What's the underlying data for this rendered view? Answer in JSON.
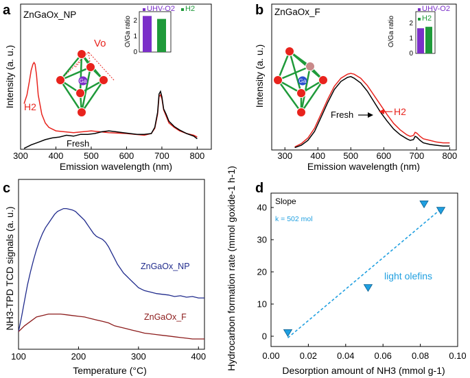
{
  "colors": {
    "black": "#000000",
    "red": "#e8231d",
    "green": "#1f9a3a",
    "purple": "#7b2fc9",
    "navy": "#1f2a8c",
    "maroon": "#8b1a1a",
    "cyan": "#1f9fe0",
    "atom_red": "#e8231d",
    "ga_blue": "#2a4fd0",
    "dark_green": "#0b6b2a",
    "dark_purple": "#4a1d8a"
  },
  "chart_data": [
    {
      "panel": "a",
      "type": "line",
      "sample_label": "ZnGaOx_NP",
      "xlabel": "Emission wavelength (nm)",
      "ylabel": "Intensity (a. u.)",
      "xlim": [
        300,
        840
      ],
      "xticks": [
        300,
        400,
        500,
        600,
        700,
        800
      ],
      "ylim": [
        0,
        100
      ],
      "series": [
        {
          "name": "H2",
          "color": "#e8231d",
          "x": [
            310,
            318,
            325,
            330,
            335,
            338,
            341,
            345,
            350,
            360,
            370,
            380,
            400,
            450,
            500,
            550,
            600,
            650,
            670,
            680,
            688,
            692,
            696,
            700,
            705,
            712,
            720,
            735,
            750,
            770,
            790,
            800
          ],
          "y": [
            52,
            62,
            78,
            90,
            97,
            99,
            97,
            85,
            62,
            40,
            30,
            25,
            21,
            19,
            21,
            19,
            18,
            16,
            18,
            24,
            40,
            60,
            62,
            58,
            45,
            38,
            30,
            25,
            21,
            18,
            16,
            14
          ]
        },
        {
          "name": "Fresh",
          "color": "#000000",
          "x": [
            310,
            330,
            350,
            370,
            390,
            410,
            430,
            450,
            470,
            490,
            510,
            530,
            550,
            570,
            590,
            610,
            630,
            650,
            670,
            680,
            688,
            692,
            696,
            700,
            705,
            712,
            720,
            735,
            750,
            770,
            790,
            800
          ],
          "y": [
            1,
            5,
            8,
            11,
            13,
            14,
            16,
            15,
            17,
            17,
            18,
            20,
            21,
            20,
            19,
            18,
            17,
            17,
            18,
            25,
            42,
            63,
            66,
            60,
            46,
            40,
            32,
            26,
            22,
            18,
            15,
            12
          ]
        }
      ],
      "labels": {
        "h2": "H2",
        "fresh": "Fresh",
        "vo": "Vo",
        "ga": "Ga"
      },
      "inset": {
        "ylabel": "O/Ga ratio",
        "yticks": [
          0,
          1,
          2
        ],
        "legend": [
          "UHV-O2",
          "H2"
        ],
        "bars": [
          {
            "name": "UHV-O2",
            "value": 2.45,
            "color": "#7b2fc9"
          },
          {
            "name": "H2",
            "value": 2.25,
            "color": "#1f9a3a"
          }
        ]
      }
    },
    {
      "panel": "b",
      "type": "line",
      "sample_label": "ZnGaOx_F",
      "xlabel": "Emission wavelength (nm)",
      "ylabel": "Intensity (a. u.)",
      "xlim": [
        260,
        820
      ],
      "xticks": [
        300,
        400,
        500,
        600,
        700,
        800
      ],
      "ylim": [
        0,
        100
      ],
      "series": [
        {
          "name": "H2",
          "color": "#e8231d",
          "x": [
            330,
            350,
            370,
            390,
            410,
            430,
            450,
            470,
            490,
            500,
            510,
            530,
            550,
            570,
            590,
            610,
            630,
            650,
            670,
            680,
            690,
            695,
            700,
            710,
            720,
            740,
            760,
            780,
            800
          ],
          "y": [
            3,
            7,
            14,
            26,
            44,
            62,
            78,
            88,
            93,
            94,
            93,
            88,
            79,
            67,
            55,
            43,
            32,
            24,
            18,
            16,
            17,
            21,
            20,
            16,
            13,
            11,
            9,
            8,
            8
          ]
        },
        {
          "name": "Fresh",
          "color": "#000000",
          "x": [
            330,
            350,
            370,
            390,
            410,
            430,
            450,
            470,
            490,
            500,
            510,
            530,
            550,
            570,
            590,
            610,
            630,
            650,
            670,
            680,
            690,
            695,
            700,
            710,
            720,
            740,
            760,
            780,
            800
          ],
          "y": [
            2,
            5,
            11,
            22,
            40,
            58,
            74,
            84,
            89,
            90,
            88,
            82,
            72,
            59,
            46,
            35,
            25,
            18,
            13,
            11,
            12,
            16,
            15,
            11,
            8,
            6,
            5,
            4,
            4
          ]
        }
      ],
      "labels": {
        "h2": "H2",
        "fresh": "Fresh",
        "ga": "Ga"
      },
      "inset": {
        "ylabel": "O/Ga ratio",
        "yticks": [
          0,
          1,
          2
        ],
        "legend": [
          "UHV-O2",
          "H2"
        ],
        "bars": [
          {
            "name": "UHV-O2",
            "value": 1.75,
            "color": "#7b2fc9"
          },
          {
            "name": "H2",
            "value": 1.85,
            "color": "#1f9a3a"
          }
        ]
      }
    },
    {
      "panel": "c",
      "type": "line",
      "xlabel": "Temperature (°C)",
      "ylabel": "NH3-TPD TCD signals (a. u.)",
      "xlim": [
        100,
        410
      ],
      "xticks": [
        100,
        200,
        300,
        400
      ],
      "ylim": [
        0,
        100
      ],
      "series": [
        {
          "name": "ZnGaOx_NP",
          "color": "#1f2a8c",
          "x": [
            100,
            105,
            110,
            115,
            120,
            125,
            130,
            135,
            140,
            145,
            150,
            155,
            160,
            165,
            170,
            175,
            180,
            185,
            190,
            195,
            200,
            205,
            210,
            215,
            220,
            225,
            230,
            235,
            240,
            245,
            250,
            255,
            260,
            265,
            270,
            275,
            280,
            285,
            290,
            295,
            300,
            305,
            310,
            320,
            330,
            340,
            350,
            360,
            370,
            380,
            390,
            400,
            410
          ],
          "y": [
            12,
            22,
            33,
            44,
            53,
            61,
            68,
            74,
            79,
            83,
            86,
            89,
            92,
            94,
            95,
            96,
            96,
            95.5,
            95,
            94,
            92,
            90,
            88,
            85,
            82,
            79,
            77,
            76,
            75,
            73,
            70,
            66,
            62,
            58,
            55,
            52,
            50,
            48,
            46,
            44,
            42,
            41,
            40,
            39,
            38,
            37.5,
            37,
            36,
            36.5,
            35.5,
            36,
            35,
            35
          ]
        },
        {
          "name": "ZnGaOx_F",
          "color": "#8b1a1a",
          "x": [
            100,
            110,
            120,
            130,
            140,
            150,
            160,
            170,
            180,
            190,
            200,
            210,
            220,
            230,
            240,
            250,
            260,
            270,
            280,
            290,
            300,
            310,
            320,
            330,
            340,
            350,
            360,
            370,
            380,
            390,
            400,
            410
          ],
          "y": [
            12,
            16,
            19,
            22,
            23,
            24,
            24,
            24,
            23.5,
            23,
            22.5,
            22,
            21,
            20,
            19,
            18,
            16,
            15,
            14,
            13,
            12,
            11,
            10.5,
            10,
            9.5,
            9,
            8.5,
            8,
            7.5,
            7,
            7,
            7
          ]
        }
      ]
    },
    {
      "panel": "d",
      "type": "scatter",
      "xlabel": "Desorption amount of NH3 (mmol g-1)",
      "ylabel": "Hydrocarbon formation rate (mmol goxide-1 h-1)",
      "xlim": [
        0,
        0.1
      ],
      "xticks": [
        "0.00",
        "0.02",
        "0.04",
        "0.06",
        "0.08",
        "0.10"
      ],
      "ylim": [
        -3,
        45
      ],
      "yticks": [
        0,
        10,
        20,
        30,
        40
      ],
      "points": [
        {
          "x": 0.009,
          "y": 1
        },
        {
          "x": 0.052,
          "y": 15
        },
        {
          "x": 0.082,
          "y": 41
        },
        {
          "x": 0.091,
          "y": 39
        }
      ],
      "fit": {
        "x": [
          0.009,
          0.091
        ],
        "y": [
          -0.5,
          39.5
        ]
      },
      "annotations": {
        "slope": "Slope",
        "k": "k = 502 mol",
        "series": "light olefins"
      }
    }
  ],
  "panel_letters": [
    "a",
    "b",
    "c",
    "d"
  ]
}
